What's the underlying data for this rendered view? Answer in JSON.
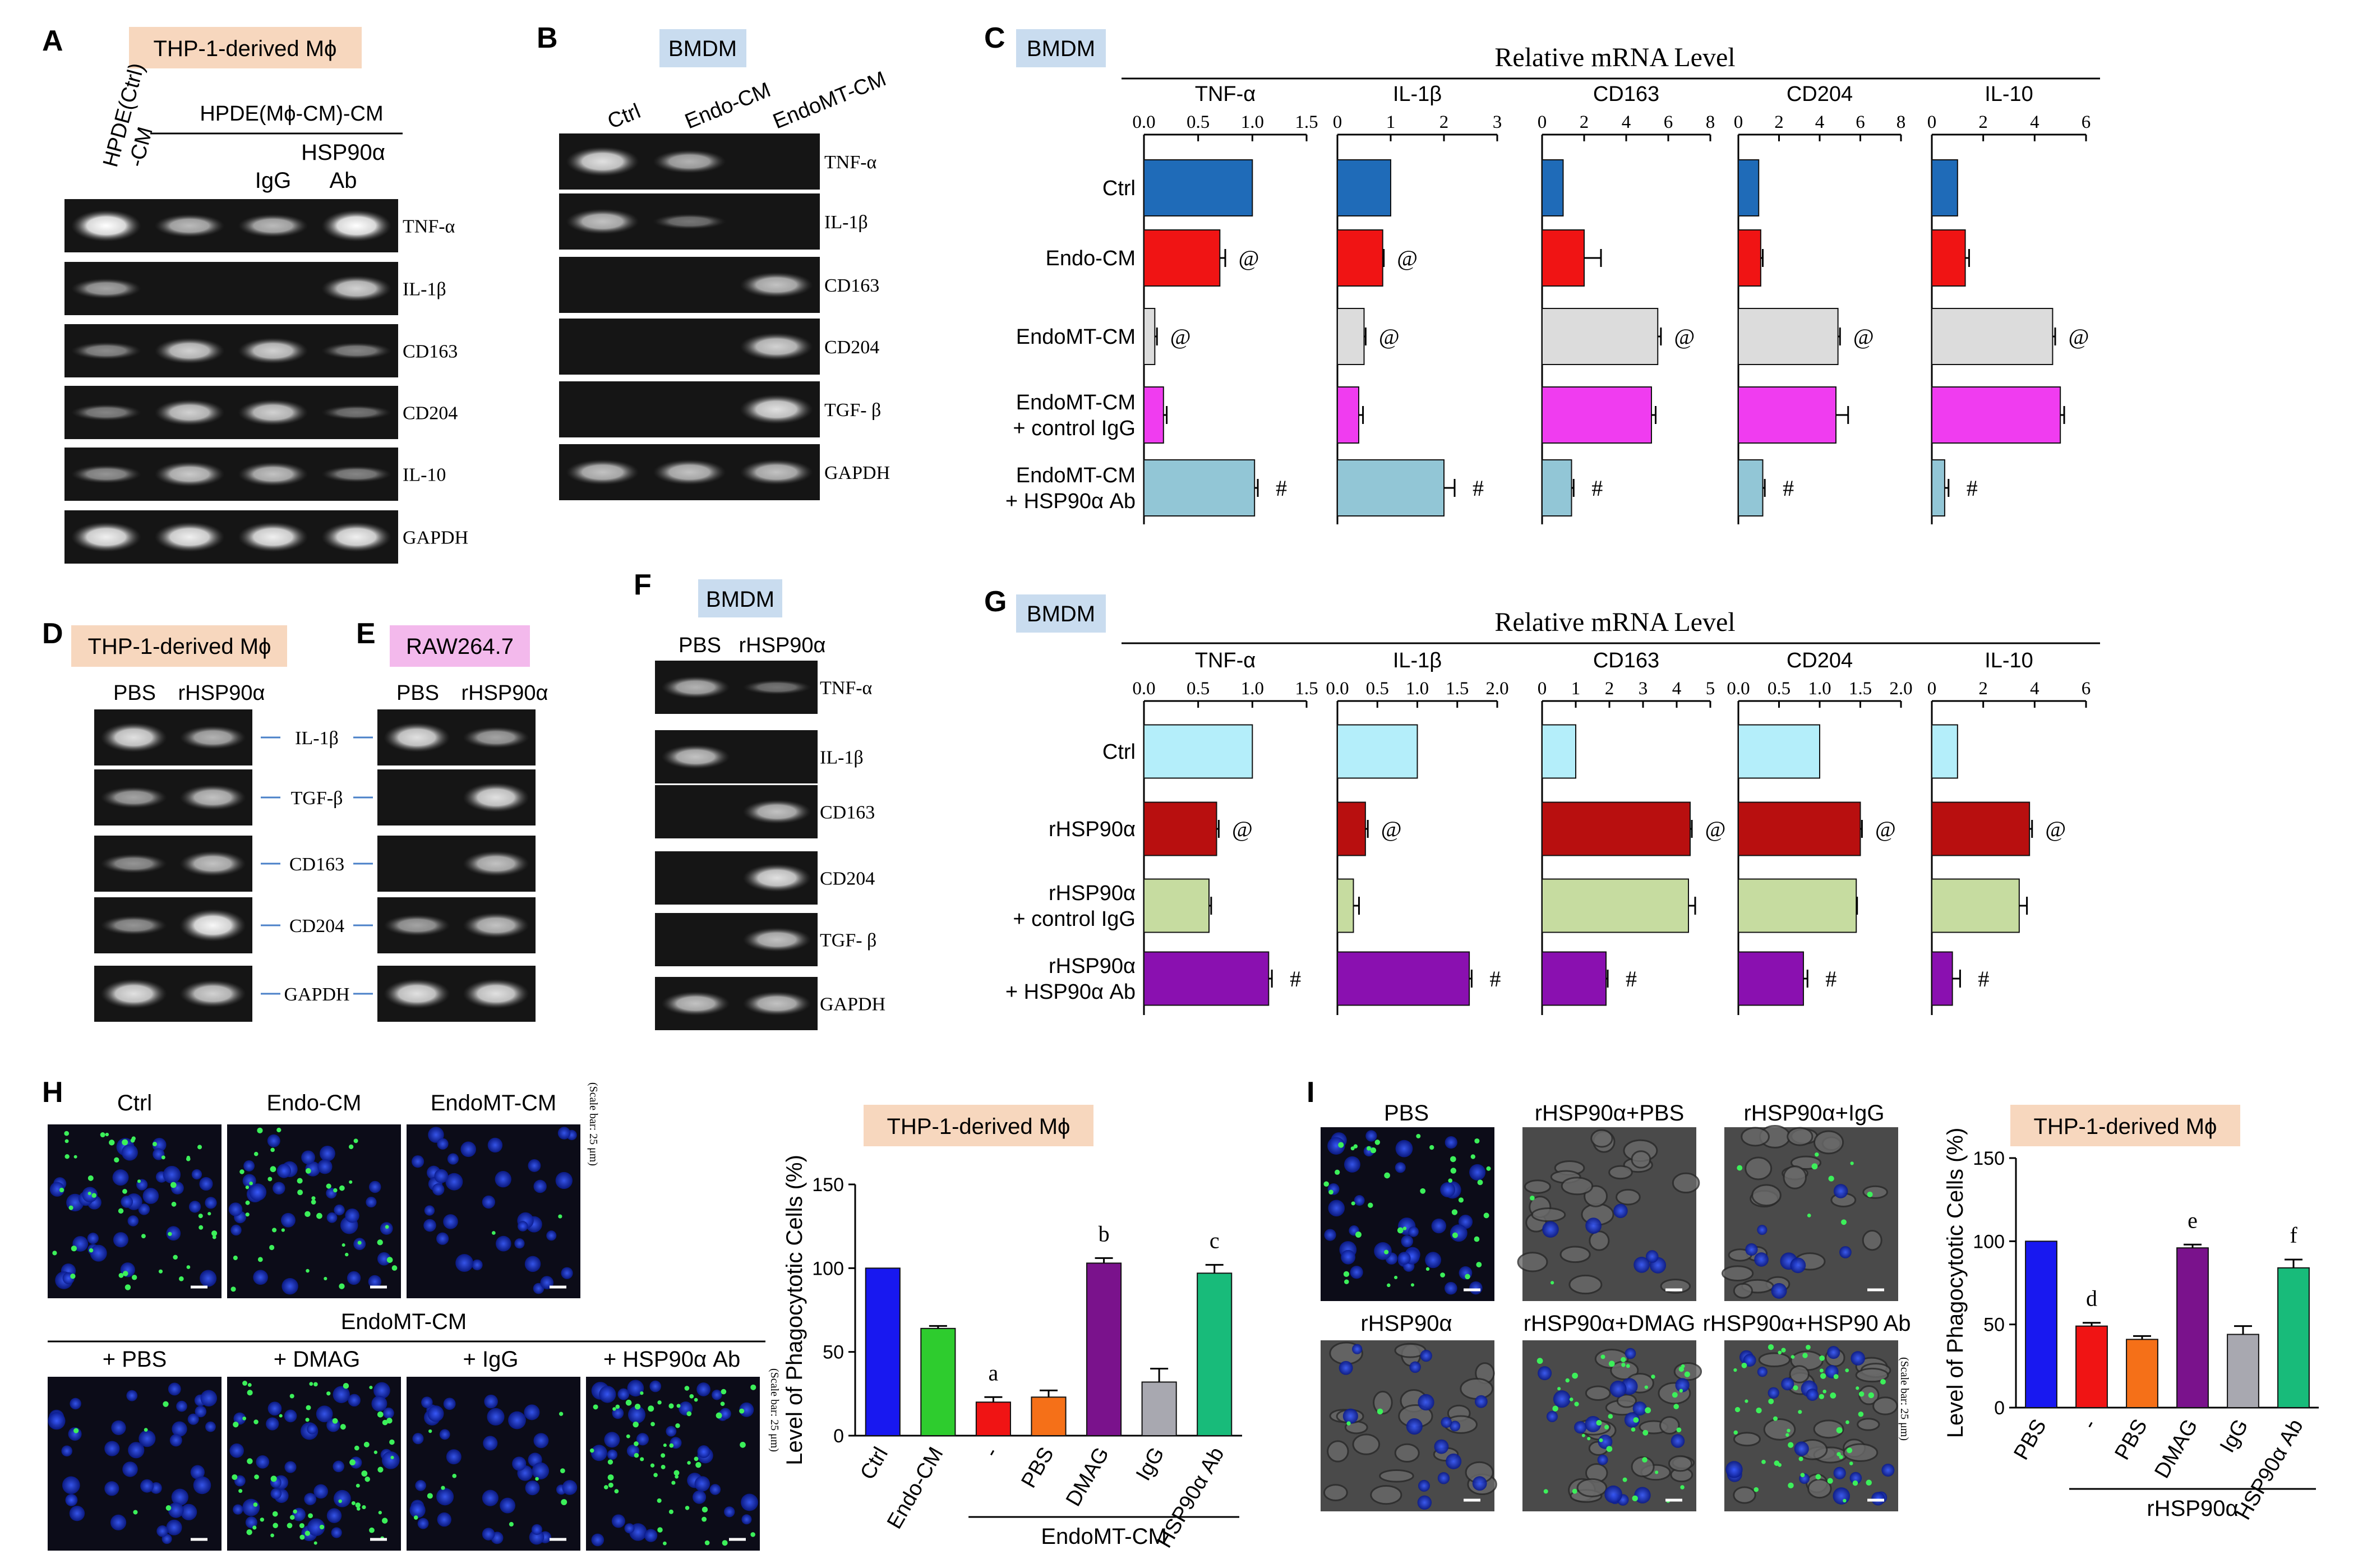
{
  "colors": {
    "peach": "#f7d7be",
    "blue_tag": "#c9dcef",
    "pink_tag": "#f3b9ec",
    "ctrl_blue": "#1f6bb8",
    "red": "#f01414",
    "grey": "#dcdcdc",
    "magenta": "#f03cf0",
    "lightblue": "#92c6d6",
    "cyan": "#b4eefa",
    "darkred": "#b80f0f",
    "olive": "#c6dca0",
    "purple": "#8a10b0",
    "hblue": "#1818f0",
    "hgreen": "#2ecc2e",
    "horange": "#f57018",
    "hpurple": "#7a128c",
    "hgray": "#a8a8b0",
    "hteal": "#18bb7a"
  },
  "panels": {
    "A": {
      "letter": "A",
      "tag": "THP-1-derived Mϕ",
      "col1": [
        "HPDE(Ctrl)",
        "-CM"
      ],
      "group": "HPDE(Mϕ-CM)-CM",
      "col3": "IgG",
      "col4": [
        "HSP90α",
        "Ab"
      ],
      "genes": [
        "TNF-α",
        "IL-1β",
        "CD163",
        "CD204",
        "IL-10",
        "GAPDH"
      ]
    },
    "B": {
      "letter": "B",
      "tag": "BMDM",
      "cols": [
        "Ctrl",
        "Endo-CM",
        "EndoMT-CM"
      ],
      "genes": [
        "TNF-α",
        "IL-1β",
        "CD163",
        "CD204",
        "TGF- β",
        "GAPDH"
      ]
    },
    "C": {
      "letter": "C",
      "tag": "BMDM",
      "title": "Relative mRNA Level",
      "rows": [
        [
          "Ctrl"
        ],
        [
          "Endo-CM"
        ],
        [
          "EndoMT-CM"
        ],
        [
          "EndoMT-CM",
          "+ control IgG"
        ],
        [
          "EndoMT-CM",
          "+ HSP90α Ab"
        ]
      ]
    },
    "D": {
      "letter": "D",
      "tag": "THP-1-derived Mϕ",
      "cols": [
        "PBS",
        "rHSP90α"
      ],
      "genes": [
        "IL-1β",
        "TGF-β",
        "CD163",
        "CD204",
        "GAPDH"
      ]
    },
    "E": {
      "letter": "E",
      "tag": "RAW264.7",
      "cols": [
        "PBS",
        "rHSP90α"
      ]
    },
    "F": {
      "letter": "F",
      "tag": "BMDM",
      "cols": [
        "PBS",
        "rHSP90α"
      ],
      "genes": [
        "TNF-α",
        "IL-1β",
        "CD163",
        "CD204",
        "TGF- β",
        "GAPDH"
      ]
    },
    "G": {
      "letter": "G",
      "tag": "BMDM",
      "title": "Relative mRNA Level",
      "rows": [
        [
          "Ctrl"
        ],
        [
          "rHSP90α"
        ],
        [
          "rHSP90α",
          "+ control IgG"
        ],
        [
          "rHSP90α",
          "+ HSP90α Ab"
        ]
      ]
    },
    "H": {
      "letter": "H",
      "top_labels": [
        "Ctrl",
        "Endo-CM",
        "EndoMT-CM"
      ],
      "group": "EndoMT-CM",
      "bottom_labels": [
        "+ PBS",
        "+ DMAG",
        "+ IgG",
        "+ HSP90α Ab"
      ],
      "scale": "(Scale bar: 25 μm)",
      "tag": "THP-1-derived Mϕ"
    },
    "I": {
      "letter": "I",
      "top_labels": [
        "PBS",
        "rHSP90α+PBS",
        "rHSP90α+IgG"
      ],
      "bottom_labels": [
        "rHSP90α",
        "rHSP90α+DMAG",
        "rHSP90α+HSP90 Ab"
      ],
      "scale": "(Scale bar: 25 μm)",
      "tag": "THP-1-derived Mϕ"
    }
  },
  "chart_data": [
    {
      "id": "C-TNF",
      "type": "bar",
      "title": "TNF-α",
      "ylabel": "Relative mRNA Level",
      "xlim": [
        0,
        1.5
      ],
      "ticks": [
        "0.0",
        "0.5",
        "1.0",
        "1.5"
      ],
      "categories": [
        "Ctrl",
        "Endo-CM",
        "EndoMT-CM",
        "EndoMT-CM + control IgG",
        "EndoMT-CM + HSP90α Ab"
      ],
      "values": [
        1.0,
        0.7,
        0.1,
        0.18,
        1.02
      ],
      "errors": [
        0,
        0.05,
        0.02,
        0.03,
        0.03
      ],
      "marks": [
        "",
        "@",
        "@",
        "",
        "#"
      ]
    },
    {
      "id": "C-IL1B",
      "type": "bar",
      "title": "IL-1β",
      "xlim": [
        0,
        3
      ],
      "ticks": [
        "0",
        "1",
        "2",
        "3"
      ],
      "categories": [
        "Ctrl",
        "Endo-CM",
        "EndoMT-CM",
        "EndoMT-CM + control IgG",
        "EndoMT-CM + HSP90α Ab"
      ],
      "values": [
        1.0,
        0.85,
        0.5,
        0.4,
        2.0
      ],
      "errors": [
        0,
        0.02,
        0.03,
        0.08,
        0.2
      ],
      "marks": [
        "",
        "@",
        "@",
        "",
        "#"
      ]
    },
    {
      "id": "C-CD163",
      "type": "bar",
      "title": "CD163",
      "xlim": [
        0,
        8
      ],
      "ticks": [
        "0",
        "2",
        "4",
        "6",
        "8"
      ],
      "categories": [
        "Ctrl",
        "Endo-CM",
        "EndoMT-CM",
        "EndoMT-CM + control IgG",
        "EndoMT-CM + HSP90α Ab"
      ],
      "values": [
        1.0,
        2.0,
        5.5,
        5.2,
        1.4
      ],
      "errors": [
        0,
        0.8,
        0.15,
        0.2,
        0.1
      ],
      "marks": [
        "",
        "",
        "@",
        "",
        "#"
      ]
    },
    {
      "id": "C-CD204",
      "type": "bar",
      "title": "CD204",
      "xlim": [
        0,
        8
      ],
      "ticks": [
        "0",
        "2",
        "4",
        "6",
        "8"
      ],
      "categories": [
        "Ctrl",
        "Endo-CM",
        "EndoMT-CM",
        "EndoMT-CM + control IgG",
        "EndoMT-CM + HSP90α Ab"
      ],
      "values": [
        1.0,
        1.1,
        4.9,
        4.8,
        1.2
      ],
      "errors": [
        0,
        0.1,
        0.1,
        0.6,
        0.1
      ],
      "marks": [
        "",
        "",
        "@",
        "",
        "#"
      ]
    },
    {
      "id": "C-IL10",
      "type": "bar",
      "title": "IL-10",
      "xlim": [
        0,
        6
      ],
      "ticks": [
        "0",
        "2",
        "4",
        "6"
      ],
      "categories": [
        "Ctrl",
        "Endo-CM",
        "EndoMT-CM",
        "EndoMT-CM + control IgG",
        "EndoMT-CM + HSP90α Ab"
      ],
      "values": [
        1.0,
        1.3,
        4.7,
        5.0,
        0.5
      ],
      "errors": [
        0,
        0.15,
        0.1,
        0.15,
        0.15
      ],
      "marks": [
        "",
        "",
        "@",
        "",
        "#"
      ]
    },
    {
      "id": "G-TNF",
      "type": "bar",
      "title": "TNF-α",
      "ylabel": "Relative mRNA Level",
      "xlim": [
        0,
        1.5
      ],
      "ticks": [
        "0.0",
        "0.5",
        "1.0",
        "1.5"
      ],
      "categories": [
        "Ctrl",
        "rHSP90α",
        "rHSP90α + control IgG",
        "rHSP90α + HSP90α Ab"
      ],
      "values": [
        1.0,
        0.67,
        0.6,
        1.15
      ],
      "errors": [
        0,
        0.02,
        0.02,
        0.03
      ],
      "marks": [
        "",
        "@",
        "",
        "#"
      ]
    },
    {
      "id": "G-IL1B",
      "type": "bar",
      "title": "IL-1β",
      "xlim": [
        0,
        2
      ],
      "ticks": [
        "0.0",
        "0.5",
        "1.0",
        "1.5",
        "2.0"
      ],
      "categories": [
        "Ctrl",
        "rHSP90α",
        "rHSP90α + control IgG",
        "rHSP90α + HSP90α Ab"
      ],
      "values": [
        1.0,
        0.35,
        0.2,
        1.65
      ],
      "errors": [
        0,
        0.03,
        0.07,
        0.03
      ],
      "marks": [
        "",
        "@",
        "",
        "#"
      ]
    },
    {
      "id": "G-CD163",
      "type": "bar",
      "title": "CD163",
      "xlim": [
        0,
        5
      ],
      "ticks": [
        "0",
        "1",
        "2",
        "3",
        "4",
        "5"
      ],
      "categories": [
        "Ctrl",
        "rHSP90α",
        "rHSP90α + control IgG",
        "rHSP90α + HSP90α Ab"
      ],
      "values": [
        1.0,
        4.4,
        4.35,
        1.9
      ],
      "errors": [
        0,
        0.05,
        0.2,
        0.05
      ],
      "marks": [
        "",
        "@",
        "",
        "#"
      ]
    },
    {
      "id": "G-CD204",
      "type": "bar",
      "title": "CD204",
      "xlim": [
        0,
        2
      ],
      "ticks": [
        "0.0",
        "0.5",
        "1.0",
        "1.5",
        "2.0"
      ],
      "categories": [
        "Ctrl",
        "rHSP90α",
        "rHSP90α + control IgG",
        "rHSP90α + HSP90α Ab"
      ],
      "values": [
        1.0,
        1.5,
        1.45,
        0.8
      ],
      "errors": [
        0,
        0.02,
        0.01,
        0.05
      ],
      "marks": [
        "",
        "@",
        "",
        "#"
      ]
    },
    {
      "id": "G-IL10",
      "type": "bar",
      "title": "IL-10",
      "xlim": [
        0,
        6
      ],
      "ticks": [
        "0",
        "2",
        "4",
        "6"
      ],
      "categories": [
        "Ctrl",
        "rHSP90α",
        "rHSP90α + control IgG",
        "rHSP90α + HSP90α Ab"
      ],
      "values": [
        1.0,
        3.8,
        3.4,
        0.8
      ],
      "errors": [
        0,
        0.1,
        0.3,
        0.3
      ],
      "marks": [
        "",
        "@",
        "",
        "#"
      ]
    },
    {
      "id": "H-bar",
      "type": "bar",
      "title": "THP-1-derived Mϕ",
      "ylabel": "Level of Phagocytotic Cells (%)",
      "ylim": [
        0,
        150
      ],
      "yticks": [
        "0",
        "50",
        "100",
        "150"
      ],
      "categories": [
        "Ctrl",
        "Endo-CM",
        "-",
        "PBS",
        "DMAG",
        "IgG",
        "HSP90α Ab"
      ],
      "values": [
        100,
        64,
        20,
        23,
        103,
        32,
        97
      ],
      "errors": [
        0,
        1.5,
        3,
        4,
        3,
        8,
        5
      ],
      "letters": [
        "",
        "",
        "a",
        "",
        "b",
        "",
        "c"
      ],
      "group_label": "EndoMT-CM"
    },
    {
      "id": "I-bar",
      "type": "bar",
      "title": "THP-1-derived Mϕ",
      "ylabel": "Level of Phagocytotic Cells (%)",
      "ylim": [
        0,
        150
      ],
      "yticks": [
        "0",
        "50",
        "100",
        "150"
      ],
      "categories": [
        "PBS",
        "-",
        "PBS",
        "DMAG",
        "IgG",
        "HSP90α Ab"
      ],
      "values": [
        100,
        49,
        41,
        96,
        44,
        84
      ],
      "errors": [
        0,
        2,
        2,
        2,
        5,
        5
      ],
      "letters": [
        "",
        "d",
        "",
        "e",
        "",
        "f"
      ],
      "group_label": "rHSP90α"
    }
  ]
}
